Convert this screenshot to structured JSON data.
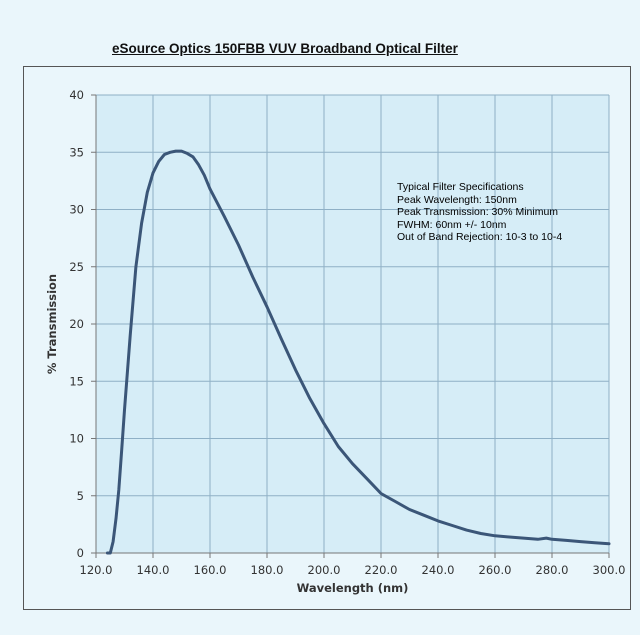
{
  "title": "eSource Optics 150FBB VUV Broadband Optical Filter",
  "annotation": [
    "Typical Filter Specifications",
    "Peak Wavelength: 150nm",
    "Peak Transmission: 30% Minimum",
    "FWHM: 60nm +/- 10nm",
    "Out of Band Rejection: 10-3 to 10-4"
  ],
  "colors": {
    "line": "#3b5678",
    "grid": "#8fb0c6",
    "plot_bg": "#d6edf7",
    "axis": "#777777"
  },
  "chart_data": {
    "type": "line",
    "title": "eSource Optics 150FBB VUV Broadband Optical Filter",
    "xlabel": "Wavelength (nm)",
    "ylabel": "% Transmission",
    "xlim": [
      120,
      300
    ],
    "ylim": [
      0,
      40
    ],
    "xticks": [
      120,
      140,
      160,
      180,
      200,
      220,
      240,
      260,
      280,
      300
    ],
    "yticks": [
      0,
      5,
      10,
      15,
      20,
      25,
      30,
      35,
      40
    ],
    "xtick_labels": [
      "120.0",
      "140.0",
      "160.0",
      "180.0",
      "200.0",
      "220.0",
      "240.0",
      "260.0",
      "280.0",
      "300.0"
    ],
    "ytick_labels": [
      "0",
      "5",
      "10",
      "15",
      "20",
      "25",
      "30",
      "35",
      "40"
    ],
    "grid": true,
    "legend": "none",
    "series": [
      {
        "x": [
          124,
          125,
          126,
          127,
          128,
          129,
          130,
          132,
          134,
          136,
          138,
          140,
          142,
          144,
          146,
          148,
          150,
          152,
          154,
          156,
          158,
          160,
          165,
          170,
          175,
          180,
          185,
          190,
          195,
          200,
          205,
          210,
          215,
          220,
          225,
          230,
          235,
          240,
          245,
          250,
          255,
          260,
          265,
          270,
          275,
          278,
          280,
          285,
          290,
          295,
          300
        ],
        "y": [
          0,
          0,
          1,
          3,
          5.5,
          9,
          12.5,
          19,
          25,
          28.8,
          31.5,
          33.2,
          34.2,
          34.8,
          35,
          35.1,
          35.1,
          34.9,
          34.6,
          33.9,
          33,
          31.8,
          29.4,
          26.9,
          24.1,
          21.5,
          18.7,
          16,
          13.5,
          11.3,
          9.3,
          7.8,
          6.5,
          5.2,
          4.5,
          3.8,
          3.3,
          2.8,
          2.4,
          2,
          1.7,
          1.5,
          1.4,
          1.3,
          1.2,
          1.3,
          1.2,
          1.1,
          1,
          0.9,
          0.8
        ]
      }
    ]
  }
}
